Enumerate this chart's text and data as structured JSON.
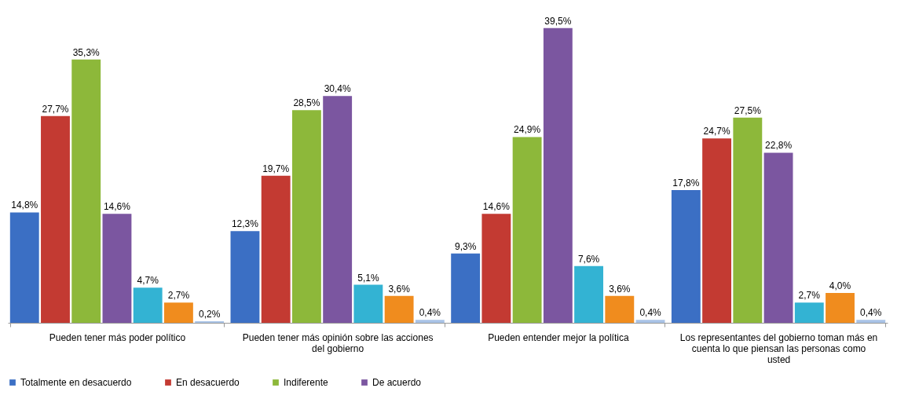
{
  "chart_data": {
    "type": "bar",
    "categories": [
      "Pueden tener más poder político",
      "Pueden tener más opinión sobre las acciones del gobierno",
      "Pueden entender mejor la política",
      "Los representantes del gobierno toman más en cuenta lo que piensan las personas como usted"
    ],
    "series": [
      {
        "name": "Totalmente en desacuerdo",
        "color": "#3b6fc4",
        "values": [
          14.8,
          12.3,
          9.3,
          17.8
        ],
        "value_labels": [
          "14,8%",
          "12,3%",
          "9,3%",
          "17,8%"
        ]
      },
      {
        "name": "En desacuerdo",
        "color": "#c33a32",
        "values": [
          27.7,
          19.7,
          14.6,
          24.7
        ],
        "value_labels": [
          "27,7%",
          "19,7%",
          "14,6%",
          "24,7%"
        ]
      },
      {
        "name": "Indiferente",
        "color": "#8db83a",
        "values": [
          35.3,
          28.5,
          24.9,
          27.5
        ],
        "value_labels": [
          "35,3%",
          "28,5%",
          "24,9%",
          "27,5%"
        ]
      },
      {
        "name": "De acuerdo",
        "color": "#7b56a0",
        "values": [
          14.6,
          30.4,
          39.5,
          22.8
        ],
        "value_labels": [
          "14,6%",
          "30,4%",
          "39,5%",
          "22,8%"
        ]
      },
      {
        "color": "#33b3d3",
        "values": [
          4.7,
          5.1,
          7.6,
          2.7
        ],
        "value_labels": [
          "4,7%",
          "5,1%",
          "7,6%",
          "2,7%"
        ]
      },
      {
        "color": "#f08c1e",
        "values": [
          2.7,
          3.6,
          3.6,
          4.0
        ],
        "value_labels": [
          "2,7%",
          "3,6%",
          "3,6%",
          "4,0%"
        ]
      },
      {
        "color": "#a9c3e6",
        "values": [
          0.2,
          0.4,
          0.4,
          0.4
        ],
        "value_labels": [
          "0,2%",
          "0,4%",
          "0,4%",
          "0,4%"
        ]
      }
    ],
    "legend": "bottom",
    "grid": false
  }
}
